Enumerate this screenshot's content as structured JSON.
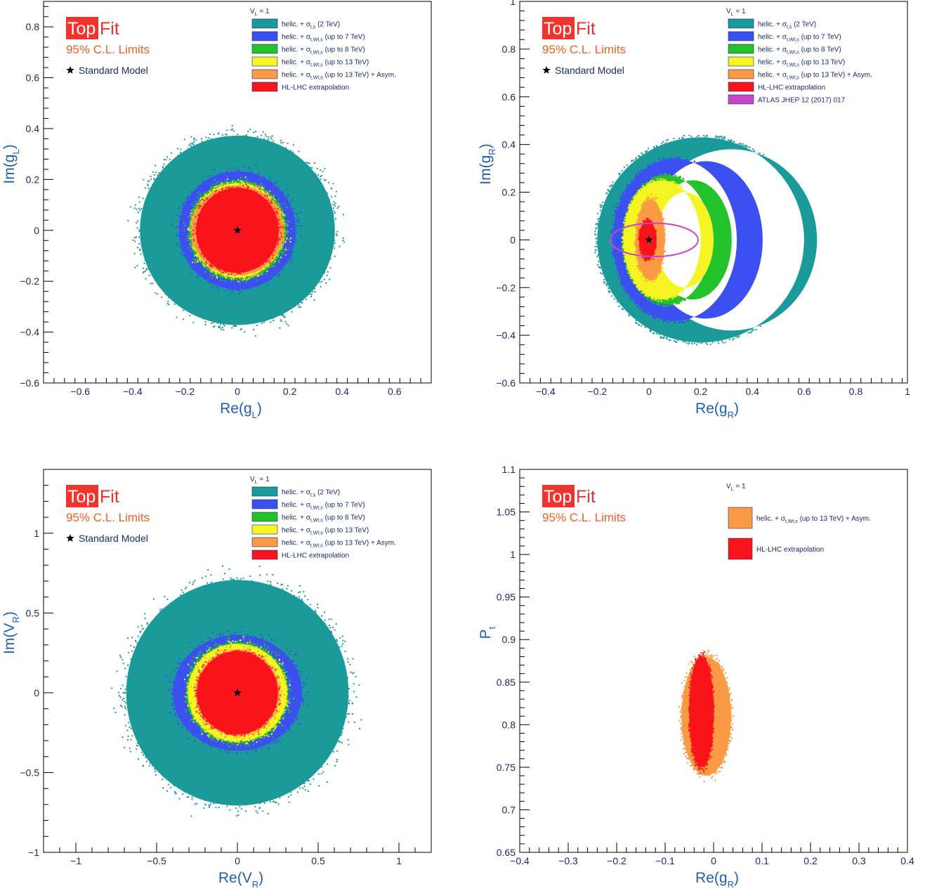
{
  "branding": {
    "logo_top": "Top",
    "logo_fit": "Fit",
    "cl_label": "95% C.L. Limits",
    "sm_label": "Standard Model",
    "header_label": "V",
    "header_sub": "L",
    "header_tail": " = 1"
  },
  "colors": {
    "teal": "#1a9a99",
    "blue": "#3c4ff0",
    "green": "#22c22a",
    "yellow": "#f5f524",
    "orange": "#fa9a45",
    "red": "#f9141c",
    "magenta": "#c846c8",
    "axis": "#000000",
    "ink": "#1a2a6c",
    "title_blue": "#1f5fb3"
  },
  "chart_data": [
    {
      "type": "scatter",
      "panel": "top-left",
      "xlabel": "Re(g",
      "xlabel_sub": "L",
      "xlabel_tail": ")",
      "ylabel": "Im(g",
      "ylabel_sub": "L",
      "ylabel_tail": ")",
      "xlim": [
        -0.74,
        0.74
      ],
      "ylim": [
        -0.6,
        0.9
      ],
      "xticks": [
        -0.6,
        -0.4,
        -0.2,
        0,
        0.2,
        0.4,
        0.6
      ],
      "xtick_labels": [
        "−0.6",
        "−0.4",
        "−0.2",
        "0",
        "0.2",
        "0.4",
        "0.6"
      ],
      "yticks": [
        -0.6,
        -0.4,
        -0.2,
        0,
        0.2,
        0.4,
        0.6,
        0.8
      ],
      "ytick_labels": [
        "−0.6",
        "−0.4",
        "−0.2",
        "0",
        "0.2",
        "0.4",
        "0.6",
        "0.8"
      ],
      "sm_point": [
        0,
        0
      ],
      "legend": [
        {
          "color": "teal",
          "text": "helic. + σ",
          "sub": "t,s",
          "tail": "    (2 TeV)"
        },
        {
          "color": "blue",
          "text": "helic. + σ",
          "sub": "t,Wt,s",
          "tail": " (up to 7 TeV)"
        },
        {
          "color": "green",
          "text": "helic. + σ",
          "sub": "t,Wt,s",
          "tail": " (up to 8 TeV)"
        },
        {
          "color": "yellow",
          "text": "helic. + σ",
          "sub": "t,Wt,s",
          "tail": " (up to 13 TeV)"
        },
        {
          "color": "orange",
          "text": "helic. + σ",
          "sub": "t,Wt,s",
          "tail": " (up to 13 TeV) + Asym."
        },
        {
          "color": "red",
          "text": "HL-LHC extrapolation",
          "sub": "",
          "tail": ""
        }
      ],
      "regions": [
        {
          "series": "helic. + σt,s (2 TeV)",
          "color": "teal",
          "shape": "ellipse",
          "center": [
            0,
            0
          ],
          "radius": [
            0.4,
            0.4
          ]
        },
        {
          "series": "helic. + σt,Wt,s (up to 7 TeV)",
          "color": "blue",
          "shape": "ellipse",
          "center": [
            0,
            0
          ],
          "radius": [
            0.24,
            0.25
          ]
        },
        {
          "series": "helic. + σt,Wt,s (up to 8 TeV)",
          "color": "green",
          "shape": "ellipse",
          "center": [
            0,
            0
          ],
          "radius": [
            0.2,
            0.21
          ]
        },
        {
          "series": "helic. + σt,Wt,s (up to 13 TeV)",
          "color": "yellow",
          "shape": "ellipse",
          "center": [
            0,
            0
          ],
          "radius": [
            0.19,
            0.2
          ]
        },
        {
          "series": "helic. + σt,Wt,s (up to 13 TeV) + Asym.",
          "color": "orange",
          "shape": "ellipse",
          "center": [
            0,
            0
          ],
          "radius": [
            0.19,
            0.19
          ]
        },
        {
          "series": "HL-LHC extrapolation",
          "color": "red",
          "shape": "ellipse",
          "center": [
            0,
            0
          ],
          "radius": [
            0.17,
            0.18
          ]
        }
      ]
    },
    {
      "type": "scatter",
      "panel": "top-right",
      "xlabel": "Re(g",
      "xlabel_sub": "R",
      "xlabel_tail": ")",
      "ylabel": "Im(g",
      "ylabel_sub": "R",
      "ylabel_tail": ")",
      "xlim": [
        -0.5,
        1.0
      ],
      "ylim": [
        -0.6,
        1.0
      ],
      "xticks": [
        -0.4,
        -0.2,
        0,
        0.2,
        0.4,
        0.6,
        0.8,
        1.0
      ],
      "xtick_labels": [
        "−0.4",
        "−0.2",
        "0",
        "0.2",
        "0.4",
        "0.6",
        "0.8",
        "1"
      ],
      "yticks": [
        -0.6,
        -0.4,
        -0.2,
        0,
        0.2,
        0.4,
        0.6,
        0.8,
        1.0
      ],
      "ytick_labels": [
        "−0.6",
        "−0.4",
        "−0.2",
        "0",
        "0.2",
        "0.4",
        "0.6",
        "0.8",
        "1"
      ],
      "sm_point": [
        0,
        0
      ],
      "legend": [
        {
          "color": "teal",
          "text": "helic. + σ",
          "sub": "t,s",
          "tail": "    (2 TeV)"
        },
        {
          "color": "blue",
          "text": "helic. + σ",
          "sub": "t,Wt,s",
          "tail": " (up to 7 TeV)"
        },
        {
          "color": "green",
          "text": "helic. + σ",
          "sub": "t,Wt,s",
          "tail": " (up to 8 TeV)"
        },
        {
          "color": "yellow",
          "text": "helic. + σ",
          "sub": "t,Wt,s",
          "tail": " (up to 13 TeV)"
        },
        {
          "color": "orange",
          "text": "helic. + σ",
          "sub": "t,Wt,s",
          "tail": " (up to 13 TeV) + Asym."
        },
        {
          "color": "red",
          "text": "HL-LHC extrapolation",
          "sub": "",
          "tail": ""
        },
        {
          "color": "magenta",
          "text": "ATLAS JHEP 12 (2017) 017",
          "sub": "",
          "tail": ""
        }
      ],
      "regions": [
        {
          "series": "helic. + σt,s (2 TeV)",
          "color": "teal",
          "shape": "crescent",
          "outer_center": [
            0.2,
            0
          ],
          "outer_radius": [
            0.4,
            0.43
          ],
          "inner_center": [
            0.32,
            0
          ],
          "inner_radius": [
            0.33,
            0.38
          ]
        },
        {
          "series": "helic. + σt,Wt,s (up to 7 TeV)",
          "color": "blue",
          "shape": "crescent",
          "outer_center": [
            0.1,
            0
          ],
          "outer_radius": [
            0.24,
            0.34
          ],
          "inner_center": [
            0.22,
            0
          ],
          "inner_radius": [
            0.22,
            0.33
          ]
        },
        {
          "series": "helic. + σt,Wt,s (up to 8 TeV)",
          "color": "green",
          "shape": "crescent",
          "outer_center": [
            0.07,
            0
          ],
          "outer_radius": [
            0.17,
            0.27
          ],
          "inner_center": [
            0.17,
            0
          ],
          "inner_radius": [
            0.15,
            0.25
          ]
        },
        {
          "series": "helic. + σt,Wt,s (up to 13 TeV)",
          "color": "yellow",
          "shape": "crescent",
          "outer_center": [
            0.05,
            0
          ],
          "outer_radius": [
            0.15,
            0.25
          ],
          "inner_center": [
            0.14,
            0
          ],
          "inner_radius": [
            0.11,
            0.2
          ]
        },
        {
          "series": "helic. + σt,Wt,s (up to 13 TeV) + Asym.",
          "color": "orange",
          "shape": "ellipse",
          "center": [
            0.005,
            0
          ],
          "radius": [
            0.06,
            0.18
          ]
        },
        {
          "series": "HL-LHC extrapolation",
          "color": "red",
          "shape": "ellipse",
          "center": [
            -0.005,
            0
          ],
          "radius": [
            0.035,
            0.09
          ]
        },
        {
          "series": "ATLAS JHEP 12 (2017) 017",
          "color": "magenta",
          "shape": "outline-ellipse",
          "center": [
            0.02,
            0
          ],
          "radius": [
            0.17,
            0.07
          ]
        }
      ]
    },
    {
      "type": "scatter",
      "panel": "bottom-left",
      "xlabel": "Re(V",
      "xlabel_sub": "R",
      "xlabel_tail": ")",
      "ylabel": "Im(V",
      "ylabel_sub": "R",
      "ylabel_tail": ")",
      "xlim": [
        -1.2,
        1.2
      ],
      "ylim": [
        -1.0,
        1.4
      ],
      "xticks": [
        -1.0,
        -0.5,
        0,
        0.5,
        1.0
      ],
      "xtick_labels": [
        "−1",
        "−0.5",
        "0",
        "0.5",
        "1"
      ],
      "yticks": [
        -1.0,
        -0.5,
        0,
        0.5,
        1.0
      ],
      "ytick_labels": [
        "−1",
        "−0.5",
        "0",
        "0.5",
        "1"
      ],
      "sm_point": [
        0,
        0
      ],
      "legend": [
        {
          "color": "teal",
          "text": "helic. + σ",
          "sub": "t,s",
          "tail": "    (2 TeV)"
        },
        {
          "color": "blue",
          "text": "helic. + σ",
          "sub": "t,Wt,s",
          "tail": " (up to 7 TeV)"
        },
        {
          "color": "green",
          "text": "helic. + σ",
          "sub": "t,Wt,s",
          "tail": " (up to 8 TeV)"
        },
        {
          "color": "yellow",
          "text": "helic. + σ",
          "sub": "t,Wt,s",
          "tail": " (up to 13 TeV)"
        },
        {
          "color": "orange",
          "text": "helic. + σ",
          "sub": "t,Wt,s",
          "tail": " (up to 13 TeV) + Asym."
        },
        {
          "color": "red",
          "text": "HL-LHC extrapolation",
          "sub": "",
          "tail": ""
        }
      ],
      "regions": [
        {
          "series": "helic. + σt,s (2 TeV)",
          "color": "teal",
          "shape": "ellipse",
          "center": [
            0,
            0
          ],
          "radius": [
            0.74,
            0.76
          ]
        },
        {
          "series": "helic. + σt,Wt,s (up to 7 TeV)",
          "color": "blue",
          "shape": "ellipse",
          "center": [
            0,
            0
          ],
          "radius": [
            0.43,
            0.39
          ]
        },
        {
          "series": "helic. + σt,Wt,s (up to 8 TeV)",
          "color": "green",
          "shape": "ellipse",
          "center": [
            0,
            0
          ],
          "radius": [
            0.34,
            0.34
          ]
        },
        {
          "series": "helic. + σt,Wt,s (up to 13 TeV)",
          "color": "yellow",
          "shape": "ellipse",
          "center": [
            0,
            0
          ],
          "radius": [
            0.33,
            0.33
          ]
        },
        {
          "series": "helic. + σt,Wt,s (up to 13 TeV) + Asym.",
          "color": "orange",
          "shape": "ellipse",
          "center": [
            0,
            0
          ],
          "radius": [
            0.28,
            0.29
          ]
        },
        {
          "series": "HL-LHC extrapolation",
          "color": "red",
          "shape": "ellipse",
          "center": [
            0,
            0
          ],
          "radius": [
            0.27,
            0.28
          ]
        }
      ]
    },
    {
      "type": "scatter",
      "panel": "bottom-right",
      "xlabel": "Re(g",
      "xlabel_sub": "R",
      "xlabel_tail": ")",
      "ylabel": "P",
      "ylabel_sub": "t",
      "ylabel_tail": "",
      "xlim": [
        -0.4,
        0.4
      ],
      "ylim": [
        0.65,
        1.1
      ],
      "xticks": [
        -0.4,
        -0.3,
        -0.2,
        -0.1,
        0,
        0.1,
        0.2,
        0.3,
        0.4
      ],
      "xtick_labels": [
        "−0.4",
        "−0.3",
        "−0.2",
        "−0.1",
        "0",
        "0.1",
        "0.2",
        "0.3",
        "0.4"
      ],
      "yticks": [
        0.65,
        0.7,
        0.75,
        0.8,
        0.85,
        0.9,
        0.95,
        1.0,
        1.05,
        1.1
      ],
      "ytick_labels": [
        "0.65",
        "0.7",
        "0.75",
        "0.8",
        "0.85",
        "0.9",
        "0.95",
        "1",
        "1.05",
        "1.1"
      ],
      "sm_point": null,
      "legend": [
        {
          "color": "orange",
          "text": "helic. + σ",
          "sub": "t,Wt,s",
          "tail": " (up to 13 TeV) + Asym."
        },
        {
          "color": "red",
          "text": "HL-LHC extrapolation",
          "sub": "",
          "tail": ""
        }
      ],
      "regions": [
        {
          "series": "helic. + σt,Wt,s (up to 13 TeV) + Asym.",
          "color": "orange",
          "shape": "ellipse",
          "center": [
            -0.015,
            0.81
          ],
          "radius": [
            0.055,
            0.075
          ]
        },
        {
          "series": "HL-LHC extrapolation",
          "color": "red",
          "shape": "ellipse",
          "center": [
            -0.025,
            0.815
          ],
          "radius": [
            0.027,
            0.07
          ]
        }
      ]
    }
  ]
}
